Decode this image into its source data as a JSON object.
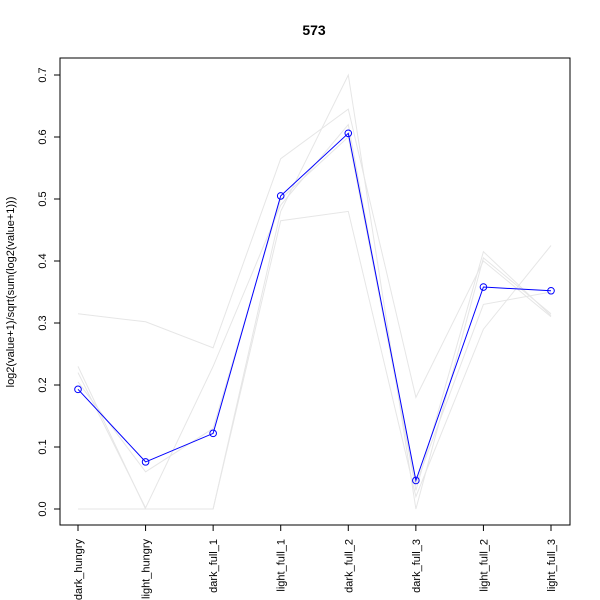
{
  "chart_data": {
    "type": "line",
    "title": "573",
    "xlabel": "",
    "ylabel": "log2(value+1)/sqrt(sum(log2(value+1)))",
    "categories": [
      "dark_hungry",
      "light_hungry",
      "dark_full_1",
      "light_full_1",
      "dark_full_2",
      "dark_full_3",
      "light_full_2",
      "light_full_3"
    ],
    "ylim": [
      0,
      0.7
    ],
    "yticks": [
      0.0,
      0.1,
      0.2,
      0.3,
      0.4,
      0.5,
      0.6,
      0.7
    ],
    "ytick_labels": [
      "0.0",
      "0.1",
      "0.2",
      "0.3",
      "0.4",
      "0.5",
      "0.6",
      "0.7"
    ],
    "grid": false,
    "series": [
      {
        "values": [
          0.193,
          0.076,
          0.122,
          0.505,
          0.606,
          0.046,
          0.358,
          0.352
        ],
        "color": "#0000ff",
        "markers": "open-circle"
      },
      {
        "values": [
          0.315,
          0.302,
          0.26,
          0.565,
          0.645,
          0.18,
          0.4,
          0.31
        ],
        "color": "#e6e6e6"
      },
      {
        "values": [
          0.23,
          0.0,
          0.0,
          0.48,
          0.7,
          0.0,
          0.405,
          0.315
        ],
        "color": "#e6e6e6"
      },
      {
        "values": [
          0.0,
          0.0,
          0.0,
          0.465,
          0.48,
          0.02,
          0.29,
          0.425
        ],
        "color": "#e6e6e6"
      },
      {
        "values": [
          0.22,
          0.002,
          0.23,
          0.49,
          0.62,
          0.03,
          0.415,
          0.312
        ],
        "color": "#e6e6e6"
      },
      {
        "values": [
          0.205,
          0.06,
          0.13,
          0.5,
          0.6,
          0.04,
          0.33,
          0.35
        ],
        "color": "#e6e6e6"
      }
    ]
  }
}
